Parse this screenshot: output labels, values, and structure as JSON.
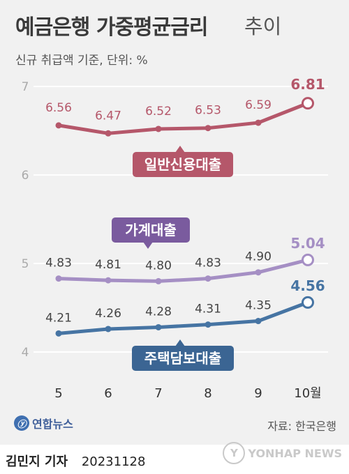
{
  "header": {
    "title_main": "예금은행 가중평균금리",
    "title_suffix": "추이",
    "subtitle": "신규 취급액 기준, 단위: %"
  },
  "footer": {
    "logo_text": "연합뉴스",
    "source": "자료: 한국은행",
    "reporter": "김민지 기자",
    "date": "20231128",
    "watermark": "YONHAP NEWS"
  },
  "colors": {
    "background": "#f1f1f1",
    "general_credit": "#b5576a",
    "household": "#a58fc4",
    "household_label": "#7a5b9e",
    "mortgage": "#4674a3",
    "mortgage_label": "#3b6593"
  },
  "chart_data": {
    "type": "line",
    "x": [
      "5",
      "6",
      "7",
      "8",
      "9",
      "10월"
    ],
    "ylim": [
      4,
      7
    ],
    "yticks": [
      "4",
      "5",
      "6",
      "7"
    ],
    "grid": true,
    "series": [
      {
        "name": "일반신용대출",
        "values": [
          6.56,
          6.47,
          6.52,
          6.53,
          6.59,
          6.81
        ],
        "labels": [
          "6.56",
          "6.47",
          "6.52",
          "6.53",
          "6.59",
          "6.81"
        ]
      },
      {
        "name": "가계대출",
        "values": [
          4.83,
          4.81,
          4.8,
          4.83,
          4.9,
          5.04
        ],
        "labels": [
          "4.83",
          "4.81",
          "4.80",
          "4.83",
          "4.90",
          "5.04"
        ]
      },
      {
        "name": "주택담보대출",
        "values": [
          4.21,
          4.26,
          4.28,
          4.31,
          4.35,
          4.56
        ],
        "labels": [
          "4.21",
          "4.26",
          "4.28",
          "4.31",
          "4.35",
          "4.56"
        ]
      }
    ]
  }
}
